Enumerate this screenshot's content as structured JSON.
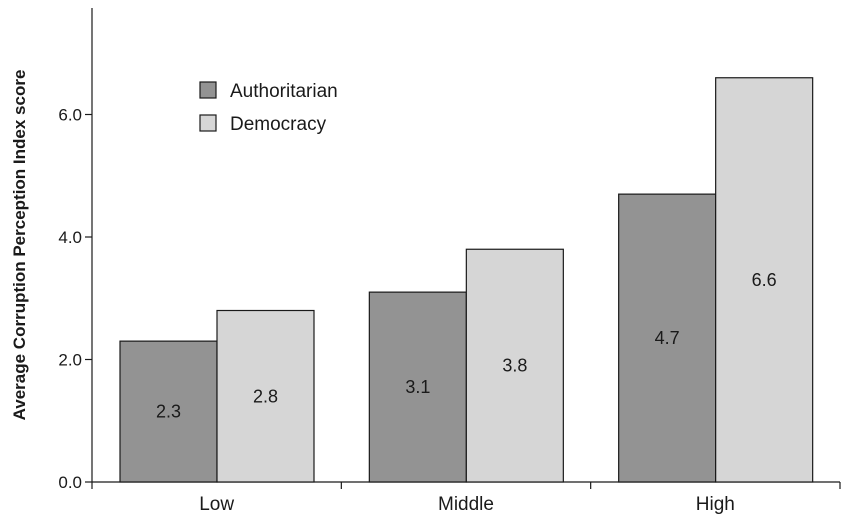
{
  "chart_data": {
    "type": "bar",
    "title": "",
    "xlabel": "",
    "ylabel": "Average Corruption Perception Index score",
    "categories": [
      "Low",
      "Middle",
      "High"
    ],
    "series": [
      {
        "name": "Authoritarian",
        "values": [
          2.3,
          3.1,
          4.7
        ],
        "color": "#939393",
        "labels": [
          "2.3",
          "3.1",
          "4.7"
        ]
      },
      {
        "name": "Democracy",
        "values": [
          2.8,
          3.8,
          6.6
        ],
        "color": "#d6d6d6",
        "labels": [
          "2.8",
          "3.8",
          "6.6"
        ]
      }
    ],
    "yticks": [
      "0.0",
      "2.0",
      "4.0",
      "6.0"
    ],
    "ylim": [
      0,
      8
    ],
    "grid": false,
    "legend_position": "top-left",
    "bar_edge_color": "#1a1a1a"
  }
}
